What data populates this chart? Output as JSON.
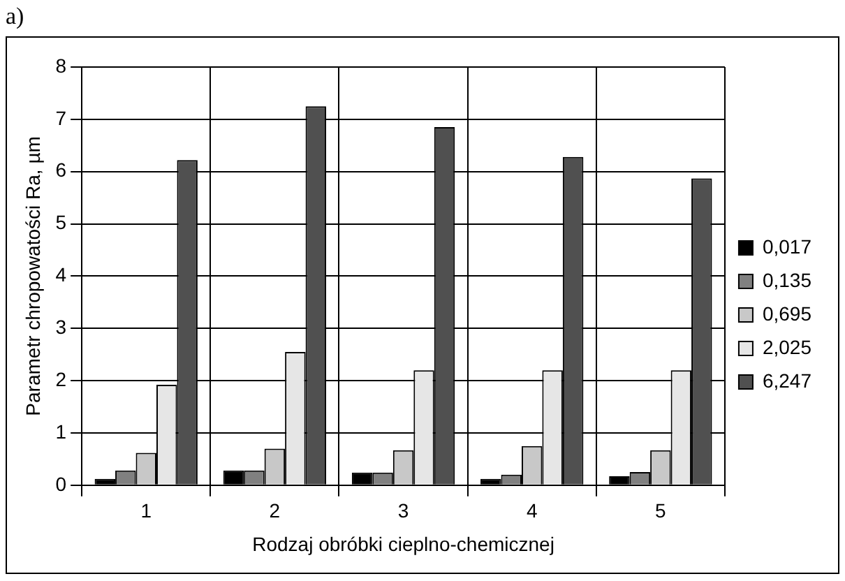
{
  "chart_data": {
    "type": "bar",
    "title": "a)",
    "xlabel": "Rodzaj obróbki cieplno-chemicznej",
    "ylabel": "Parametr chropowatości Ra, µm",
    "categories": [
      "1",
      "2",
      "3",
      "4",
      "5"
    ],
    "series": [
      {
        "name": "0,017",
        "color": "#000000",
        "values": [
          0.12,
          0.28,
          0.24,
          0.12,
          0.17
        ]
      },
      {
        "name": "0,135",
        "color": "#808080",
        "values": [
          0.28,
          0.28,
          0.24,
          0.2,
          0.25
        ]
      },
      {
        "name": "0,695",
        "color": "#c8c8c8",
        "values": [
          0.62,
          0.7,
          0.67,
          0.75,
          0.67
        ]
      },
      {
        "name": "2,025",
        "color": "#e6e6e6",
        "values": [
          1.92,
          2.55,
          2.2,
          2.2,
          2.2
        ]
      },
      {
        "name": "6,247",
        "color": "#505050",
        "values": [
          6.22,
          7.25,
          6.85,
          6.28,
          5.87
        ]
      }
    ],
    "ylim": [
      0,
      8
    ],
    "yticks": [
      0,
      1,
      2,
      3,
      4,
      5,
      6,
      7,
      8
    ],
    "grid": true,
    "legend": "right"
  }
}
